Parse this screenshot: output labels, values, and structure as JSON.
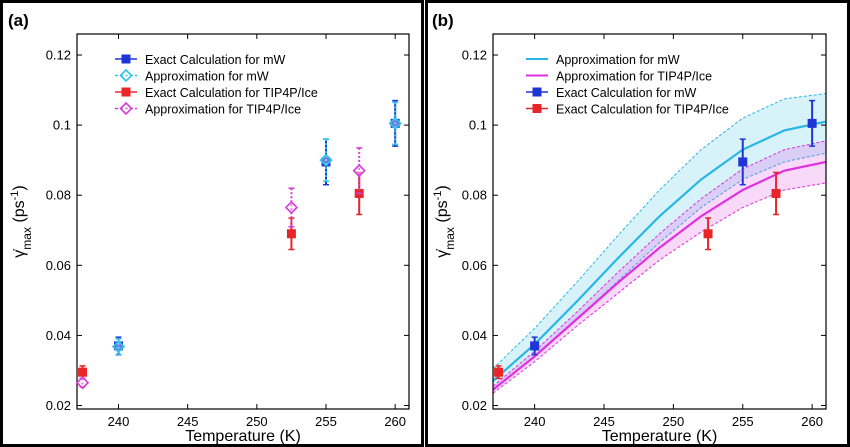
{
  "chart_data": [
    {
      "panel_label": "(a)",
      "type": "scatter",
      "xlabel": "Temperature (K)",
      "ylabel": "γ̇max (ps⁻¹)",
      "ylabel_main": "γ̇",
      "ylabel_sub": "max",
      "ylabel_unit": " (ps",
      "ylabel_sup": "-1",
      "ylabel_close": ")",
      "xlim": [
        237,
        261
      ],
      "ylim": [
        0.019,
        0.126
      ],
      "x_ticks": [
        240,
        245,
        250,
        255,
        260
      ],
      "y_ticks": [
        0.02,
        0.04,
        0.06,
        0.08,
        0.1,
        0.12
      ],
      "y_tick_labels": [
        "0.02",
        "0.04",
        "0.06",
        "0.08",
        "0.1",
        "0.12"
      ],
      "legend_position": "top-center",
      "series": [
        {
          "name": "Exact Calculation for mW",
          "color": "#1f35d6",
          "marker": "square",
          "line": "solid",
          "x": [
            240,
            255,
            260
          ],
          "y": [
            0.037,
            0.0895,
            0.1005
          ],
          "err": [
            0.0025,
            0.0065,
            0.0065
          ]
        },
        {
          "name": "Approximation for mW",
          "color": "#29c4e6",
          "marker": "diamond",
          "line": "dashed",
          "x": [
            240,
            255,
            260
          ],
          "y": [
            0.0368,
            0.09,
            0.1005
          ],
          "err": [
            0.0022,
            0.006,
            0.006
          ]
        },
        {
          "name": "Exact Calculation for TIP4P/Ice",
          "color": "#e8262a",
          "marker": "square",
          "line": "solid",
          "x": [
            237.4,
            252.5,
            257.4
          ],
          "y": [
            0.0295,
            0.069,
            0.0805
          ],
          "err": [
            0.0018,
            0.0045,
            0.006
          ]
        },
        {
          "name": "Approximation for TIP4P/Ice",
          "color": "#d63cd6",
          "marker": "diamond",
          "line": "dashed",
          "x": [
            237.4,
            252.5,
            257.4
          ],
          "y": [
            0.0265,
            0.0765,
            0.087
          ],
          "err": [
            0.0012,
            0.0055,
            0.0065
          ]
        }
      ]
    },
    {
      "panel_label": "(b)",
      "type": "line",
      "xlabel": "Temperature (K)",
      "ylabel": "γ̇max (ps⁻¹)",
      "ylabel_main": "γ̇",
      "ylabel_sub": "max",
      "ylabel_unit": " (ps",
      "ylabel_sup": "-1",
      "ylabel_close": ")",
      "xlim": [
        237,
        261
      ],
      "ylim": [
        0.019,
        0.126
      ],
      "x_ticks": [
        240,
        245,
        250,
        255,
        260
      ],
      "y_ticks": [
        0.02,
        0.04,
        0.06,
        0.08,
        0.1,
        0.12
      ],
      "y_tick_labels": [
        "0.02",
        "0.04",
        "0.06",
        "0.08",
        "0.1",
        "0.12"
      ],
      "legend_position": "top-center",
      "curves": [
        {
          "name": "Approximation for mW",
          "color": "#29b6e6",
          "band_color": "#29b6e6",
          "x": [
            237,
            240,
            243,
            246,
            249,
            252,
            255,
            258,
            261
          ],
          "y": [
            0.027,
            0.0375,
            0.0495,
            0.062,
            0.074,
            0.0845,
            0.093,
            0.0985,
            0.101
          ],
          "upper": [
            0.0305,
            0.042,
            0.055,
            0.0685,
            0.0815,
            0.093,
            0.102,
            0.1075,
            0.109
          ],
          "lower": [
            0.0245,
            0.034,
            0.0445,
            0.0555,
            0.0665,
            0.0765,
            0.0845,
            0.0895,
            0.092
          ]
        },
        {
          "name": "Approximation for TIP4P/Ice",
          "color": "#e02fe0",
          "band_color": "#e02fe0",
          "x": [
            237,
            240,
            243,
            246,
            249,
            252,
            255,
            258,
            261
          ],
          "y": [
            0.0245,
            0.034,
            0.0445,
            0.055,
            0.065,
            0.074,
            0.0815,
            0.087,
            0.0895
          ],
          "upper": [
            0.0255,
            0.0355,
            0.0465,
            0.058,
            0.069,
            0.079,
            0.0875,
            0.093,
            0.0955
          ],
          "lower": [
            0.0235,
            0.0325,
            0.0425,
            0.052,
            0.0615,
            0.0695,
            0.0765,
            0.0815,
            0.0835
          ]
        }
      ],
      "series": [
        {
          "name": "Exact Calculation for mW",
          "color": "#1f35d6",
          "marker": "square",
          "x": [
            240,
            255,
            260
          ],
          "y": [
            0.037,
            0.0895,
            0.1005
          ],
          "err": [
            0.0025,
            0.0065,
            0.0065
          ]
        },
        {
          "name": "Exact Calculation for TIP4P/Ice",
          "color": "#e8262a",
          "marker": "square",
          "x": [
            237.4,
            252.5,
            257.4
          ],
          "y": [
            0.0295,
            0.069,
            0.0805
          ],
          "err": [
            0.0018,
            0.0045,
            0.006
          ]
        }
      ],
      "legend": [
        {
          "name": "Approximation for mW",
          "color": "#29b6e6",
          "kind": "line"
        },
        {
          "name": "Approximation for TIP4P/Ice",
          "color": "#e02fe0",
          "kind": "line"
        },
        {
          "name": "Exact Calculation for mW",
          "color": "#1f35d6",
          "kind": "marker"
        },
        {
          "name": "Exact Calculation for TIP4P/Ice",
          "color": "#e8262a",
          "kind": "marker"
        }
      ]
    }
  ]
}
